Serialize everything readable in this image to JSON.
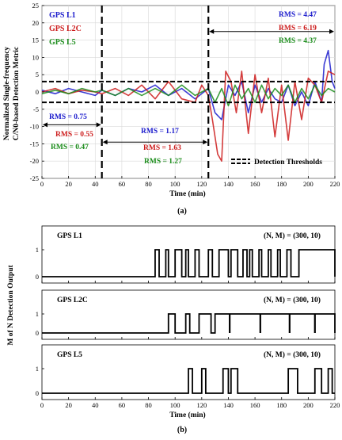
{
  "chart_data": [
    {
      "type": "line",
      "panel_label": "(a)",
      "xlabel": "Time (min)",
      "ylabel_line1": "Normalized Single-frequency",
      "ylabel_line2": "C/N0-based Detection Metric",
      "xlim": [
        0,
        220
      ],
      "ylim": [
        -25,
        25
      ],
      "x_ticks": [
        0,
        20,
        40,
        60,
        80,
        100,
        120,
        140,
        160,
        180,
        200,
        220
      ],
      "y_ticks": [
        -25,
        -20,
        -15,
        -10,
        -5,
        0,
        5,
        10,
        15,
        20,
        25
      ],
      "grid": true,
      "legend_position": "top-left",
      "threshold_label": "Detection Thresholds",
      "thresholds": [
        3,
        -3
      ],
      "segment_boundaries": [
        45,
        125
      ],
      "series": [
        {
          "name": "GPS L1",
          "color": "#1a1acc",
          "points": [
            [
              0,
              0.5
            ],
            [
              10,
              -0.5
            ],
            [
              20,
              1
            ],
            [
              30,
              0
            ],
            [
              40,
              -1
            ],
            [
              45,
              0.5
            ],
            [
              55,
              -1
            ],
            [
              65,
              1
            ],
            [
              75,
              0
            ],
            [
              85,
              2
            ],
            [
              95,
              -1
            ],
            [
              105,
              1
            ],
            [
              115,
              -2
            ],
            [
              125,
              1
            ],
            [
              130,
              -6
            ],
            [
              135,
              -8
            ],
            [
              140,
              2
            ],
            [
              145,
              -1
            ],
            [
              150,
              3
            ],
            [
              155,
              -6
            ],
            [
              160,
              2
            ],
            [
              165,
              -3
            ],
            [
              170,
              1
            ],
            [
              175,
              -2
            ],
            [
              180,
              -3
            ],
            [
              185,
              2
            ],
            [
              190,
              -4
            ],
            [
              195,
              0
            ],
            [
              200,
              -4
            ],
            [
              205,
              3
            ],
            [
              210,
              -3
            ],
            [
              212,
              8
            ],
            [
              215,
              12
            ],
            [
              218,
              3
            ],
            [
              220,
              1
            ]
          ]
        },
        {
          "name": "GPS L2C",
          "color": "#cc1a1a",
          "points": [
            [
              0,
              0
            ],
            [
              10,
              1
            ],
            [
              20,
              -0.5
            ],
            [
              30,
              0.5
            ],
            [
              40,
              0
            ],
            [
              45,
              -0.5
            ],
            [
              55,
              1
            ],
            [
              65,
              -1
            ],
            [
              75,
              2
            ],
            [
              85,
              -2
            ],
            [
              95,
              3
            ],
            [
              105,
              -2
            ],
            [
              115,
              -3
            ],
            [
              120,
              2
            ],
            [
              125,
              -1
            ],
            [
              128,
              -8
            ],
            [
              132,
              -18
            ],
            [
              135,
              -20
            ],
            [
              138,
              6
            ],
            [
              142,
              3
            ],
            [
              146,
              -6
            ],
            [
              150,
              6
            ],
            [
              155,
              -12
            ],
            [
              160,
              5
            ],
            [
              165,
              -6
            ],
            [
              170,
              4
            ],
            [
              175,
              -13
            ],
            [
              180,
              2
            ],
            [
              185,
              -14
            ],
            [
              190,
              3
            ],
            [
              195,
              -8
            ],
            [
              200,
              4
            ],
            [
              205,
              2
            ],
            [
              210,
              -3
            ],
            [
              215,
              6
            ],
            [
              220,
              5
            ]
          ]
        },
        {
          "name": "GPS L5",
          "color": "#1a8c1a",
          "points": [
            [
              0,
              -0.5
            ],
            [
              10,
              0.5
            ],
            [
              20,
              -0.5
            ],
            [
              30,
              1
            ],
            [
              40,
              0
            ],
            [
              45,
              0.5
            ],
            [
              55,
              -1
            ],
            [
              65,
              1
            ],
            [
              75,
              -1
            ],
            [
              85,
              1
            ],
            [
              95,
              -1
            ],
            [
              105,
              2
            ],
            [
              115,
              -1
            ],
            [
              125,
              1
            ],
            [
              130,
              -3
            ],
            [
              135,
              1
            ],
            [
              140,
              -4
            ],
            [
              145,
              2
            ],
            [
              150,
              -2
            ],
            [
              155,
              1
            ],
            [
              160,
              -3
            ],
            [
              165,
              2
            ],
            [
              170,
              -2
            ],
            [
              175,
              1
            ],
            [
              180,
              -1
            ],
            [
              185,
              2
            ],
            [
              190,
              -3
            ],
            [
              195,
              1
            ],
            [
              200,
              -2
            ],
            [
              205,
              2
            ],
            [
              210,
              -1
            ],
            [
              215,
              1
            ],
            [
              220,
              0
            ]
          ]
        }
      ],
      "rms_annotations": [
        {
          "segment": 0,
          "series": "GPS L1",
          "text": "RMS = 0.75",
          "color": "#1a1acc"
        },
        {
          "segment": 0,
          "series": "GPS L2C",
          "text": "RMS = 0.55",
          "color": "#cc1a1a"
        },
        {
          "segment": 0,
          "series": "GPS L5",
          "text": "RMS = 0.47",
          "color": "#1a8c1a"
        },
        {
          "segment": 1,
          "series": "GPS L1",
          "text": "RMS = 1.17",
          "color": "#1a1acc"
        },
        {
          "segment": 1,
          "series": "GPS L2C",
          "text": "RMS = 1.63",
          "color": "#cc1a1a"
        },
        {
          "segment": 1,
          "series": "GPS L5",
          "text": "RMS = 1.27",
          "color": "#1a8c1a"
        },
        {
          "segment": 2,
          "series": "GPS L1",
          "text": "RMS = 4.47",
          "color": "#1a1acc"
        },
        {
          "segment": 2,
          "series": "GPS L2C",
          "text": "RMS = 6.19",
          "color": "#cc1a1a"
        },
        {
          "segment": 2,
          "series": "GPS L5",
          "text": "RMS = 4.37",
          "color": "#1a8c1a"
        }
      ]
    },
    {
      "type": "line",
      "panel_label": "(b)",
      "xlabel": "Time (min)",
      "ylabel": "M of N Detection Output",
      "xlim": [
        0,
        220
      ],
      "ylim": [
        0,
        1
      ],
      "x_ticks": [
        0,
        20,
        40,
        60,
        80,
        100,
        120,
        140,
        160,
        180,
        200,
        220
      ],
      "y_ticks": [
        0,
        1
      ],
      "annotation": "(N, M) = (300, 10)",
      "subplots": [
        {
          "title": "GPS L1",
          "on_intervals": [
            [
              85,
              88
            ],
            [
              93,
              95
            ],
            [
              100,
              105
            ],
            [
              108,
              110
            ],
            [
              115,
              118
            ],
            [
              125,
              128
            ],
            [
              133,
              140
            ],
            [
              142,
              147
            ],
            [
              151,
              154
            ],
            [
              156,
              158
            ],
            [
              163,
              165
            ],
            [
              170,
              172
            ],
            [
              177,
              179
            ],
            [
              184,
              187
            ],
            [
              193,
              220
            ]
          ]
        },
        {
          "title": "GPS L2C",
          "on_intervals": [
            [
              95,
              100
            ],
            [
              108,
              111
            ],
            [
              118,
              127
            ],
            [
              130,
              220
            ]
          ],
          "off_spikes": [
            141,
            164,
            186,
            205
          ]
        },
        {
          "title": "GPS L5",
          "on_intervals": [
            [
              110,
              113
            ],
            [
              120,
              123
            ],
            [
              136,
              140
            ],
            [
              142,
              147
            ],
            [
              185,
              192
            ],
            [
              205,
              210
            ],
            [
              215,
              218
            ]
          ]
        }
      ]
    }
  ]
}
